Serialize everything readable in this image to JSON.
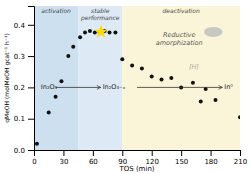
{
  "chart_data": {
    "type": "scatter",
    "xlabel": "TOS (min)",
    "ylabel": "qMeOH (molMeOH gcat⁻¹ h⁻¹)",
    "xlim": [
      0,
      210
    ],
    "ylim": [
      0.0,
      0.46
    ],
    "xticks": [
      0,
      30,
      60,
      90,
      120,
      150,
      180,
      210
    ],
    "yticks": [
      {
        "value": 0.0,
        "label": "0.0"
      },
      0.1,
      0.2,
      0.3,
      0.4
    ],
    "x": [
      3,
      15,
      22,
      28,
      35,
      40,
      47,
      52,
      57,
      62,
      67,
      72,
      77,
      83,
      90,
      100,
      110,
      120,
      130,
      140,
      150,
      162,
      170,
      175,
      185,
      210
    ],
    "values": [
      0.02,
      0.12,
      0.17,
      0.22,
      0.3,
      0.33,
      0.36,
      0.375,
      0.38,
      0.375,
      0.375,
      0.38,
      0.375,
      0.375,
      0.29,
      0.27,
      0.26,
      0.235,
      0.225,
      0.23,
      0.2,
      0.215,
      0.155,
      0.195,
      0.16,
      0.105
    ],
    "color": "#111111",
    "regions": [
      {
        "label": "activation",
        "start": 0,
        "end": 45,
        "color": "#cde0f0",
        "label_color": "#444444"
      },
      {
        "label": "stable\nperformance",
        "start": 45,
        "end": 90,
        "color": "#dde9f5",
        "label_color": "#444444"
      },
      {
        "label": "deactivation",
        "start": 90,
        "end": 210,
        "color": "#faf5d8",
        "label_color": "#444444"
      }
    ],
    "annotations": [
      {
        "type": "text",
        "text": "Reductive\namorphization",
        "x": 148,
        "y": 0.355,
        "color": "#555555"
      },
      {
        "type": "text",
        "text": "[H]",
        "x": 163,
        "y": 0.265,
        "color": "#aaaaaa"
      },
      {
        "type": "arrow",
        "x": 22,
        "x_end": 68,
        "y": 0.2,
        "color": "#333333"
      },
      {
        "type": "arrow",
        "x": 105,
        "x_end": 192,
        "y": 0.2,
        "color": "#333333"
      },
      {
        "type": "formula",
        "text": "In₂O₃",
        "x": 7,
        "y": 0.2,
        "color": "#222222"
      },
      {
        "type": "formula",
        "text": "In₂O₃₋ₓ",
        "x": 70,
        "y": 0.2,
        "color": "#222222"
      },
      {
        "type": "formula",
        "text": "In⁰",
        "x": 194,
        "y": 0.2,
        "color": "#222222"
      },
      {
        "type": "star",
        "x": 68.25,
        "y": 0.3772,
        "color": "#FFD700"
      },
      {
        "type": "ellipse",
        "x": 182.7,
        "y": 0.3772,
        "color": "#BBBBBB"
      }
    ]
  }
}
